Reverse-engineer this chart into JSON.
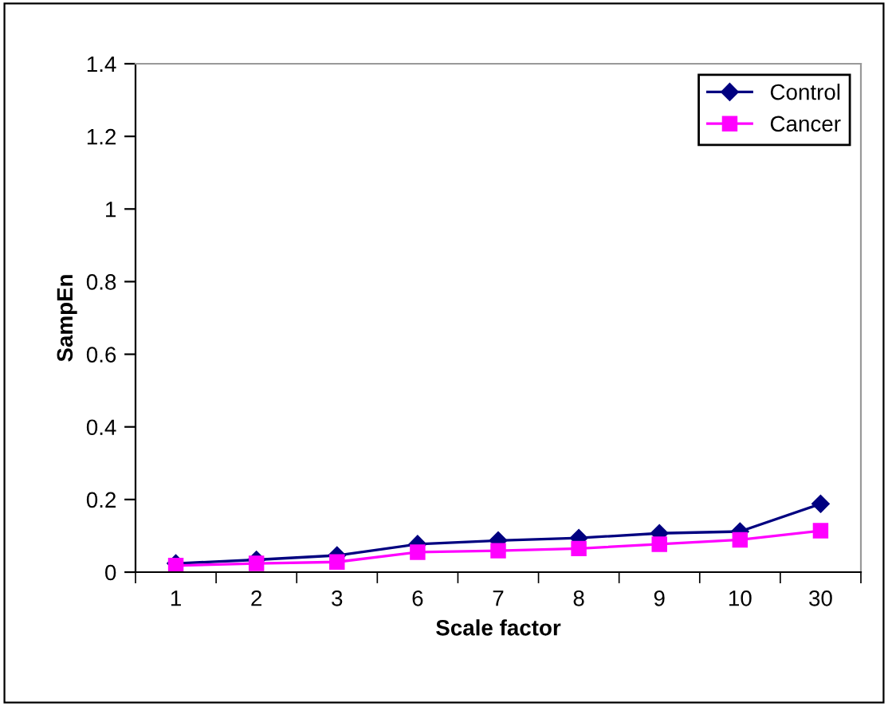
{
  "chart_data": {
    "type": "line",
    "xlabel": "Scale factor",
    "ylabel": "SampEn",
    "categories": [
      "1",
      "2",
      "3",
      "6",
      "7",
      "8",
      "9",
      "10",
      "30"
    ],
    "series": [
      {
        "name": "Control",
        "color": "#000080",
        "marker": "diamond",
        "values": [
          0.024,
          0.034,
          0.046,
          0.077,
          0.087,
          0.094,
          0.107,
          0.112,
          0.188
        ]
      },
      {
        "name": "Cancer",
        "color": "#ff00ff",
        "marker": "square",
        "values": [
          0.018,
          0.024,
          0.028,
          0.055,
          0.059,
          0.065,
          0.077,
          0.089,
          0.114
        ]
      }
    ],
    "ylim": [
      0,
      1.4
    ],
    "yticks": [
      0,
      0.2,
      0.4,
      0.6,
      0.8,
      1,
      1.2,
      1.4
    ],
    "grid": false,
    "legend": "top right"
  }
}
